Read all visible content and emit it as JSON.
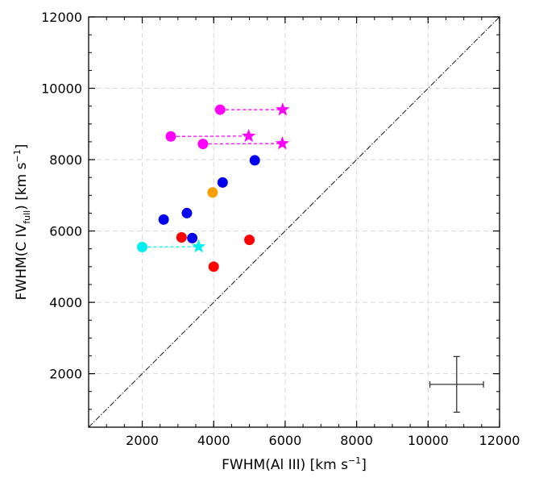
{
  "chart_data": {
    "type": "scatter",
    "title": "",
    "xlabel": {
      "prefix": "FWHM(Al III) [km s",
      "sup": "−1",
      "suffix": "]"
    },
    "ylabel": {
      "prefix": "FWHM(C IV",
      "sub": "full",
      "suffix": ") [km s",
      "sup": "−1",
      "suffix2": "]"
    },
    "xlim": [
      500,
      12000
    ],
    "ylim": [
      500,
      12000
    ],
    "xticks": [
      2000,
      4000,
      6000,
      8000,
      10000,
      12000
    ],
    "yticks": [
      2000,
      4000,
      6000,
      8000,
      10000,
      12000
    ],
    "x_minor_step": 500,
    "y_minor_step": 500,
    "grid": true,
    "one_to_one_line": [
      [
        500,
        500
      ],
      [
        12000,
        12000
      ]
    ],
    "series": [
      {
        "name": "blue",
        "color": "#0000ee",
        "marker": "circle",
        "points": [
          [
            2600,
            6320
          ],
          [
            3250,
            6500
          ],
          [
            3400,
            5800
          ],
          [
            4250,
            7360
          ],
          [
            5150,
            7980
          ]
        ]
      },
      {
        "name": "red",
        "color": "#ff0000",
        "marker": "circle",
        "points": [
          [
            3100,
            5820
          ],
          [
            4000,
            5000
          ],
          [
            5000,
            5750
          ]
        ]
      },
      {
        "name": "orange",
        "color": "#f5a000",
        "marker": "circle",
        "points": [
          [
            3970,
            7080
          ]
        ]
      }
    ],
    "linked_pairs": [
      {
        "color": "#ff00ff",
        "from": [
          4180,
          9400
        ],
        "to": [
          5930,
          9400
        ]
      },
      {
        "color": "#ff00ff",
        "from": [
          2800,
          8650
        ],
        "to": [
          4980,
          8660
        ]
      },
      {
        "color": "#ff00ff",
        "from": [
          3700,
          8440
        ],
        "to": [
          5920,
          8450
        ]
      },
      {
        "color": "#00f0f0",
        "from": [
          2000,
          5550
        ],
        "to": [
          3580,
          5560
        ]
      }
    ],
    "error_bar": {
      "x": 10800,
      "y": 1700,
      "x_err": [
        10050,
        11550
      ],
      "y_err": [
        920,
        2480
      ],
      "color": "#333333"
    }
  }
}
